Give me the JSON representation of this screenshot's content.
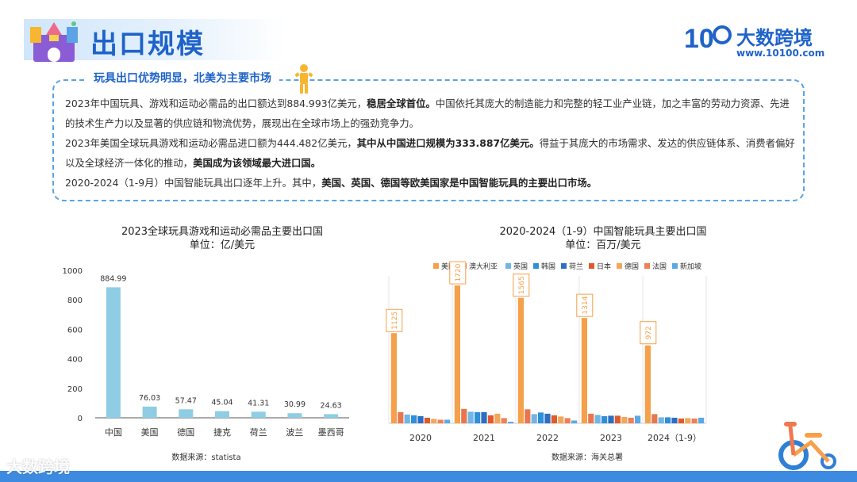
{
  "header": {
    "title": "出口规模"
  },
  "brand": {
    "name": "大数跨境",
    "url": "www.10100.com",
    "logo_text": "10"
  },
  "summary": {
    "title": "玩具出口优势明显，北美为主要市场",
    "p1a": "2023年中国玩具、游戏和运动必需品的出口额达到884.993亿美元，",
    "p1b": "稳居全球首位。",
    "p1c": "中国依托其庞大的制造能力和完整的轻工业产业链，加之丰富的劳动力资源、先进的技术生产力以及显著的供应链和物流优势，展现出在全球市场上的强劲竞争力。",
    "p2a": "2023年美国全球玩具游戏和运动必需品进口额为444.482亿美元，",
    "p2b": "其中从中国进口规模为333.887亿美元。",
    "p2c": "得益于其庞大的市场需求、发达的供应链体系、消费者偏好以及全球经济一体化的推动，",
    "p2d": "美国成为该领域最大进口国。",
    "p3a": "2020-2024（1-9月）中国智能玩具出口逐年上升。其中，",
    "p3b": "美国、英国、德国等欧美国家是中国智能玩具的主要出口市场。"
  },
  "watermark": "大数跨境",
  "chart_data": [
    {
      "type": "bar",
      "title": "2023全球玩具游戏和运动必需品主要出口国",
      "subtitle": "单位：亿/美元",
      "categories": [
        "中国",
        "美国",
        "德国",
        "捷克",
        "荷兰",
        "波兰",
        "墨西哥"
      ],
      "values": [
        884.99,
        76.03,
        57.47,
        45.04,
        41.31,
        30.99,
        24.63
      ],
      "data_labels": [
        "884.99",
        "76.03",
        "57.47",
        "45.04",
        "41.31",
        "30.99",
        "24.63"
      ],
      "yticks": [
        "0",
        "200",
        "400",
        "600",
        "800",
        "1000"
      ],
      "ylim": [
        0,
        1000
      ],
      "grid": false,
      "color": "#8ecde3",
      "source": "数据来源：statista"
    },
    {
      "type": "bar",
      "title": "2020-2024（1-9）中国智能玩具主要出口国",
      "subtitle": "单位：百万/美元",
      "categories": [
        "2020",
        "2021",
        "2022",
        "2023",
        "2024（1-9）"
      ],
      "series": [
        {
          "name": "美国",
          "color": "#f5a04a",
          "values": [
            1125,
            1720,
            1565,
            1314,
            972
          ]
        },
        {
          "name": "澳大利亚",
          "color": "#e9764f",
          "values": [
            140,
            180,
            175,
            120,
            115
          ]
        },
        {
          "name": "英国",
          "color": "#71b6e6",
          "values": [
            110,
            145,
            115,
            105,
            75
          ]
        },
        {
          "name": "韩国",
          "color": "#2f8fd8",
          "values": [
            100,
            140,
            135,
            90,
            75
          ]
        },
        {
          "name": "荷兰",
          "color": "#2a6fc2",
          "values": [
            90,
            140,
            120,
            95,
            70
          ]
        },
        {
          "name": "日本",
          "color": "#e05b2b",
          "values": [
            70,
            100,
            100,
            95,
            60
          ]
        },
        {
          "name": "德国",
          "color": "#f3a758",
          "values": [
            55,
            120,
            85,
            80,
            65
          ]
        },
        {
          "name": "法国",
          "color": "#ef8055",
          "values": [
            45,
            65,
            65,
            70,
            60
          ]
        },
        {
          "name": "新加坡",
          "color": "#5aa8e6",
          "values": [
            45,
            20,
            35,
            95,
            70
          ]
        }
      ],
      "data_labels": [
        "1125",
        "1720",
        "1565",
        "1314",
        "972"
      ],
      "grid": true,
      "legend": "top",
      "source": "数据来源：海关总署"
    }
  ]
}
